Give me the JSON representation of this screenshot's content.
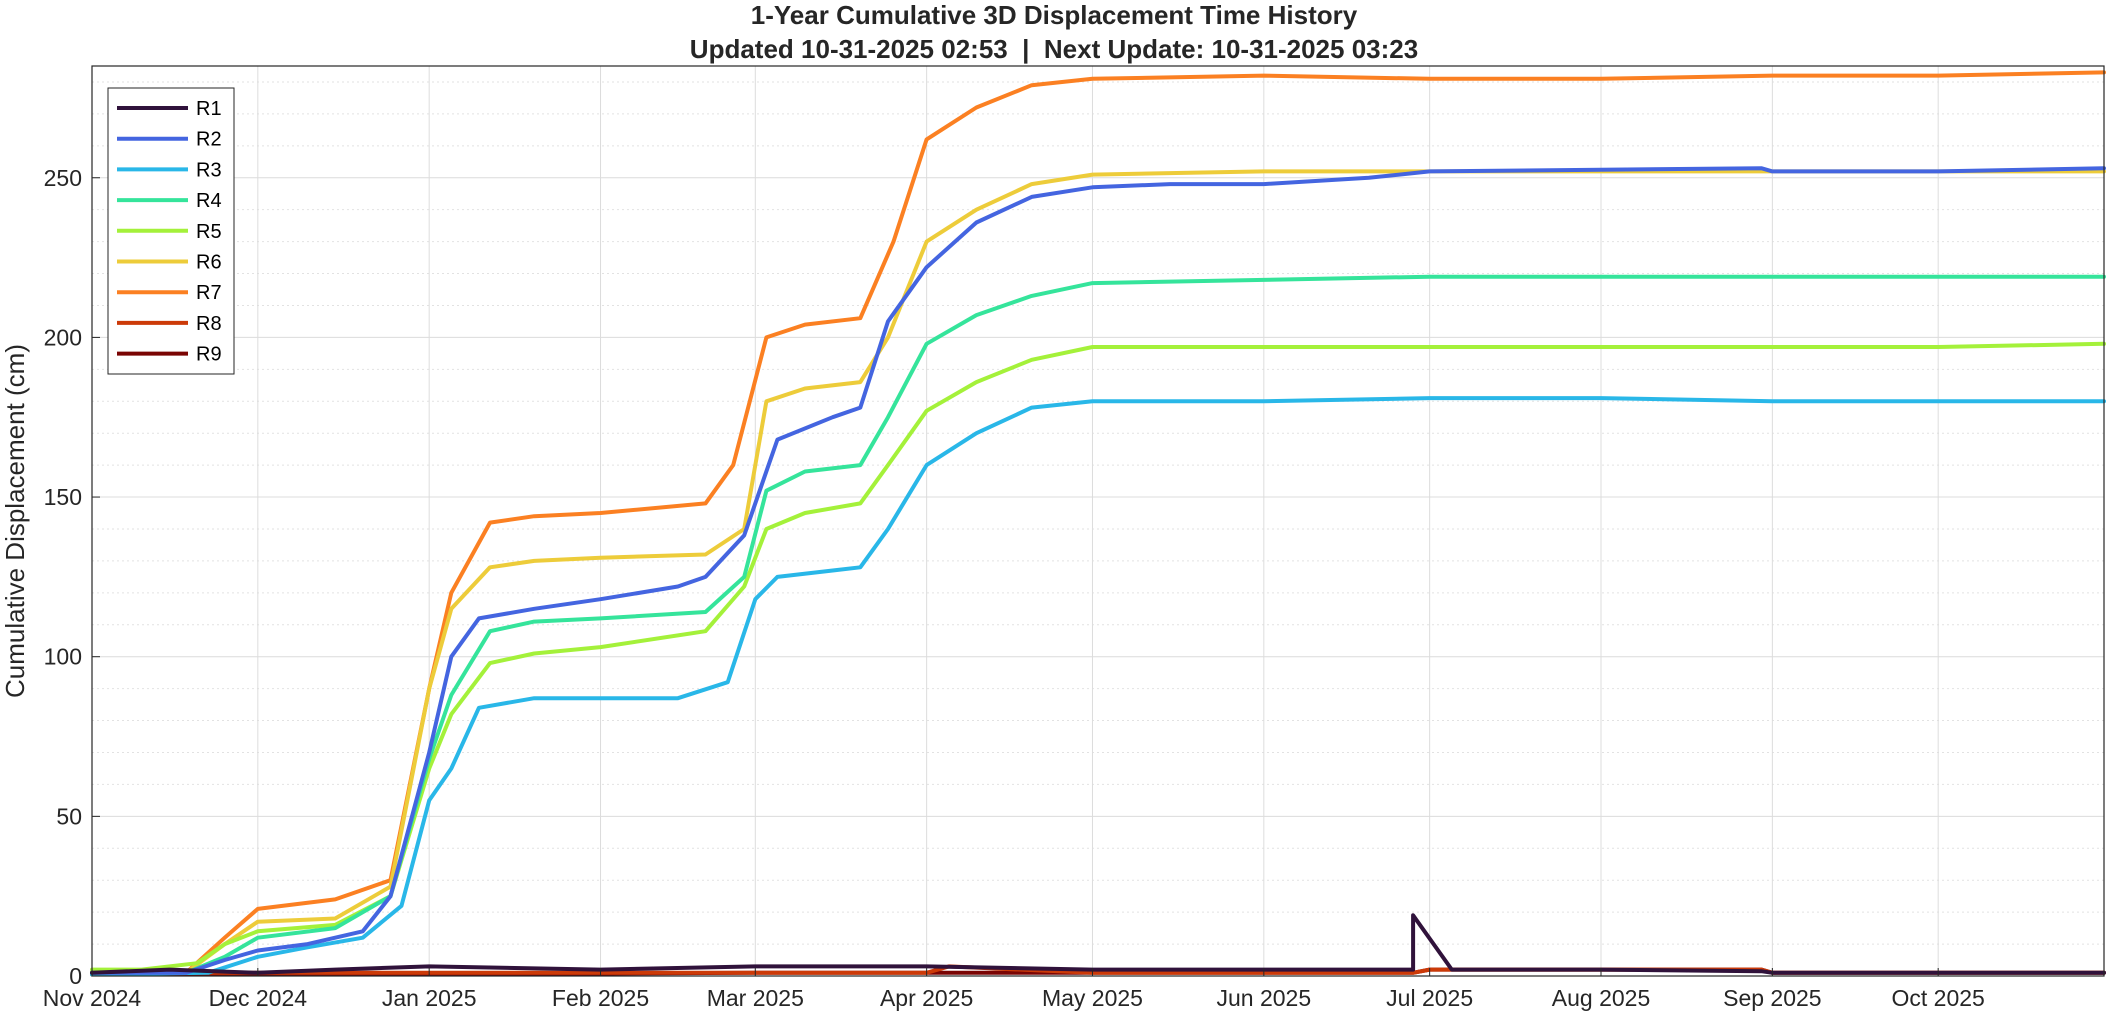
{
  "chart_data": {
    "type": "line",
    "title": "1-Year Cumulative 3D Displacement Time History",
    "subtitle": "Updated 10-31-2025 02:53  |  Next Update: 10-31-2025 03:23",
    "xlabel": "",
    "ylabel": "Cumulative Displacement (cm)",
    "x_range": [
      "2024-11-01",
      "2025-10-31"
    ],
    "ylim": [
      0,
      285
    ],
    "x_ticks": [
      "2024-11-01",
      "2024-12-01",
      "2025-01-01",
      "2025-02-01",
      "2025-03-01",
      "2025-04-01",
      "2025-05-01",
      "2025-06-01",
      "2025-07-01",
      "2025-08-01",
      "2025-09-01",
      "2025-10-01"
    ],
    "x_tick_labels": [
      "Nov 2024",
      "Dec 2024",
      "Jan 2025",
      "Feb 2025",
      "Mar 2025",
      "Apr 2025",
      "May 2025",
      "Jun 2025",
      "Jul 2025",
      "Aug 2025",
      "Sep 2025",
      "Oct 2025"
    ],
    "y_ticks": [
      0,
      50,
      100,
      150,
      200,
      250
    ],
    "grid": true,
    "minor_grid": true,
    "legend_position": "top-left",
    "series": [
      {
        "name": "R1",
        "color": "#30123b",
        "x": [
          "2024-11-01",
          "2024-11-15",
          "2024-12-01",
          "2024-12-15",
          "2025-01-01",
          "2025-02-01",
          "2025-03-01",
          "2025-04-01",
          "2025-05-01",
          "2025-06-01",
          "2025-06-25",
          "2025-06-28",
          "2025-06-28",
          "2025-07-05",
          "2025-08-01",
          "2025-08-30",
          "2025-09-01",
          "2025-10-01",
          "2025-10-31"
        ],
        "y": [
          1,
          2,
          1,
          2,
          3,
          2,
          3,
          3,
          2,
          2,
          2,
          2,
          19,
          2,
          2,
          1.5,
          1,
          1,
          1
        ]
      },
      {
        "name": "R2",
        "color": "#4465e0",
        "x": [
          "2024-11-01",
          "2024-11-18",
          "2024-11-25",
          "2024-12-01",
          "2024-12-10",
          "2024-12-20",
          "2024-12-25",
          "2025-01-01",
          "2025-01-05",
          "2025-01-10",
          "2025-01-20",
          "2025-02-01",
          "2025-02-15",
          "2025-02-20",
          "2025-02-27",
          "2025-03-05",
          "2025-03-15",
          "2025-03-20",
          "2025-03-25",
          "2025-04-01",
          "2025-04-10",
          "2025-04-20",
          "2025-05-01",
          "2025-05-15",
          "2025-06-01",
          "2025-06-20",
          "2025-07-01",
          "2025-08-01",
          "2025-08-30",
          "2025-09-01",
          "2025-10-01",
          "2025-10-31"
        ],
        "y": [
          1,
          1,
          5,
          8,
          10,
          14,
          25,
          70,
          100,
          112,
          115,
          118,
          122,
          125,
          138,
          168,
          175,
          178,
          205,
          222,
          236,
          244,
          247,
          248,
          248,
          250,
          252,
          252.5,
          253,
          252,
          252,
          253
        ]
      },
      {
        "name": "R3",
        "color": "#29b7e8",
        "x": [
          "2024-11-01",
          "2024-11-22",
          "2024-12-01",
          "2024-12-10",
          "2024-12-20",
          "2024-12-27",
          "2025-01-01",
          "2025-01-05",
          "2025-01-10",
          "2025-01-20",
          "2025-02-15",
          "2025-02-24",
          "2025-03-01",
          "2025-03-05",
          "2025-03-15",
          "2025-03-20",
          "2025-03-25",
          "2025-04-01",
          "2025-04-10",
          "2025-04-20",
          "2025-05-01",
          "2025-06-01",
          "2025-07-01",
          "2025-08-01",
          "2025-09-01",
          "2025-10-01",
          "2025-10-31"
        ],
        "y": [
          0.5,
          1,
          6,
          9,
          12,
          22,
          55,
          65,
          84,
          87,
          87,
          92,
          118,
          125,
          127,
          128,
          140,
          160,
          170,
          178,
          180,
          180,
          181,
          181,
          180,
          180,
          180
        ]
      },
      {
        "name": "R4",
        "color": "#35e49b",
        "x": [
          "2024-11-01",
          "2024-11-18",
          "2024-11-25",
          "2024-12-01",
          "2024-12-15",
          "2024-12-25",
          "2025-01-01",
          "2025-01-05",
          "2025-01-12",
          "2025-01-20",
          "2025-02-01",
          "2025-02-20",
          "2025-02-27",
          "2025-03-03",
          "2025-03-10",
          "2025-03-20",
          "2025-03-25",
          "2025-04-01",
          "2025-04-10",
          "2025-04-20",
          "2025-05-01",
          "2025-06-01",
          "2025-07-01",
          "2025-08-01",
          "2025-09-01",
          "2025-10-01",
          "2025-10-31"
        ],
        "y": [
          0.5,
          1,
          6,
          12,
          15,
          25,
          68,
          88,
          108,
          111,
          112,
          114,
          125,
          152,
          158,
          160,
          175,
          198,
          207,
          213,
          217,
          218,
          219,
          219,
          219,
          219,
          219
        ]
      },
      {
        "name": "R5",
        "color": "#a4f13a",
        "x": [
          "2024-11-01",
          "2024-11-10",
          "2024-11-20",
          "2024-11-25",
          "2024-12-01",
          "2024-12-15",
          "2024-12-25",
          "2025-01-01",
          "2025-01-05",
          "2025-01-12",
          "2025-01-20",
          "2025-02-01",
          "2025-02-20",
          "2025-02-27",
          "2025-03-03",
          "2025-03-10",
          "2025-03-20",
          "2025-03-25",
          "2025-04-01",
          "2025-04-10",
          "2025-04-20",
          "2025-05-01",
          "2025-06-01",
          "2025-07-01",
          "2025-08-01",
          "2025-09-01",
          "2025-10-01",
          "2025-10-31"
        ],
        "y": [
          2,
          2,
          4,
          10,
          14,
          16,
          25,
          65,
          82,
          98,
          101,
          103,
          108,
          122,
          140,
          145,
          148,
          160,
          177,
          186,
          193,
          197,
          197,
          197,
          197,
          197,
          197,
          198
        ]
      },
      {
        "name": "R6",
        "color": "#edcc3a",
        "x": [
          "2024-11-01",
          "2024-11-18",
          "2024-11-25",
          "2024-12-01",
          "2024-12-15",
          "2024-12-25",
          "2025-01-01",
          "2025-01-05",
          "2025-01-12",
          "2025-01-20",
          "2025-02-01",
          "2025-02-20",
          "2025-02-27",
          "2025-03-03",
          "2025-03-10",
          "2025-03-20",
          "2025-03-25",
          "2025-04-01",
          "2025-04-10",
          "2025-04-20",
          "2025-05-01",
          "2025-06-01",
          "2025-07-01",
          "2025-08-01",
          "2025-09-01",
          "2025-10-01",
          "2025-10-31"
        ],
        "y": [
          1,
          1,
          10,
          17,
          18,
          28,
          90,
          115,
          128,
          130,
          131,
          132,
          140,
          180,
          184,
          186,
          200,
          230,
          240,
          248,
          251,
          252,
          252,
          252,
          252,
          252,
          252
        ]
      },
      {
        "name": "R7",
        "color": "#fb8022",
        "x": [
          "2024-11-01",
          "2024-11-18",
          "2024-11-25",
          "2024-12-01",
          "2024-12-15",
          "2024-12-25",
          "2025-01-01",
          "2025-01-05",
          "2025-01-12",
          "2025-01-20",
          "2025-02-01",
          "2025-02-20",
          "2025-02-25",
          "2025-03-03",
          "2025-03-10",
          "2025-03-20",
          "2025-03-26",
          "2025-04-01",
          "2025-04-10",
          "2025-04-20",
          "2025-05-01",
          "2025-06-01",
          "2025-07-01",
          "2025-08-01",
          "2025-09-01",
          "2025-10-01",
          "2025-10-31"
        ],
        "y": [
          1,
          1,
          12,
          21,
          24,
          30,
          90,
          120,
          142,
          144,
          145,
          148,
          160,
          200,
          204,
          206,
          230,
          262,
          272,
          279,
          281,
          282,
          281,
          281,
          282,
          282,
          283
        ]
      },
      {
        "name": "R8",
        "color": "#cc3a08",
        "x": [
          "2024-11-01",
          "2025-01-01",
          "2025-03-01",
          "2025-04-01",
          "2025-04-05",
          "2025-05-01",
          "2025-06-01",
          "2025-06-28",
          "2025-07-01",
          "2025-08-01",
          "2025-08-30",
          "2025-09-01",
          "2025-10-01",
          "2025-10-31"
        ],
        "y": [
          1,
          1,
          1,
          1,
          3,
          1,
          1,
          1,
          2,
          2,
          2,
          1,
          1,
          1
        ]
      },
      {
        "name": "R9",
        "color": "#7a0403",
        "x": [
          "2024-11-01",
          "2025-01-01",
          "2025-03-01",
          "2025-05-01",
          "2025-06-28",
          "2025-07-01",
          "2025-08-01",
          "2025-08-30",
          "2025-09-01",
          "2025-10-01",
          "2025-10-31"
        ],
        "y": [
          0.5,
          0.5,
          1,
          1,
          1,
          2,
          2,
          2,
          1,
          1,
          1
        ]
      }
    ]
  }
}
